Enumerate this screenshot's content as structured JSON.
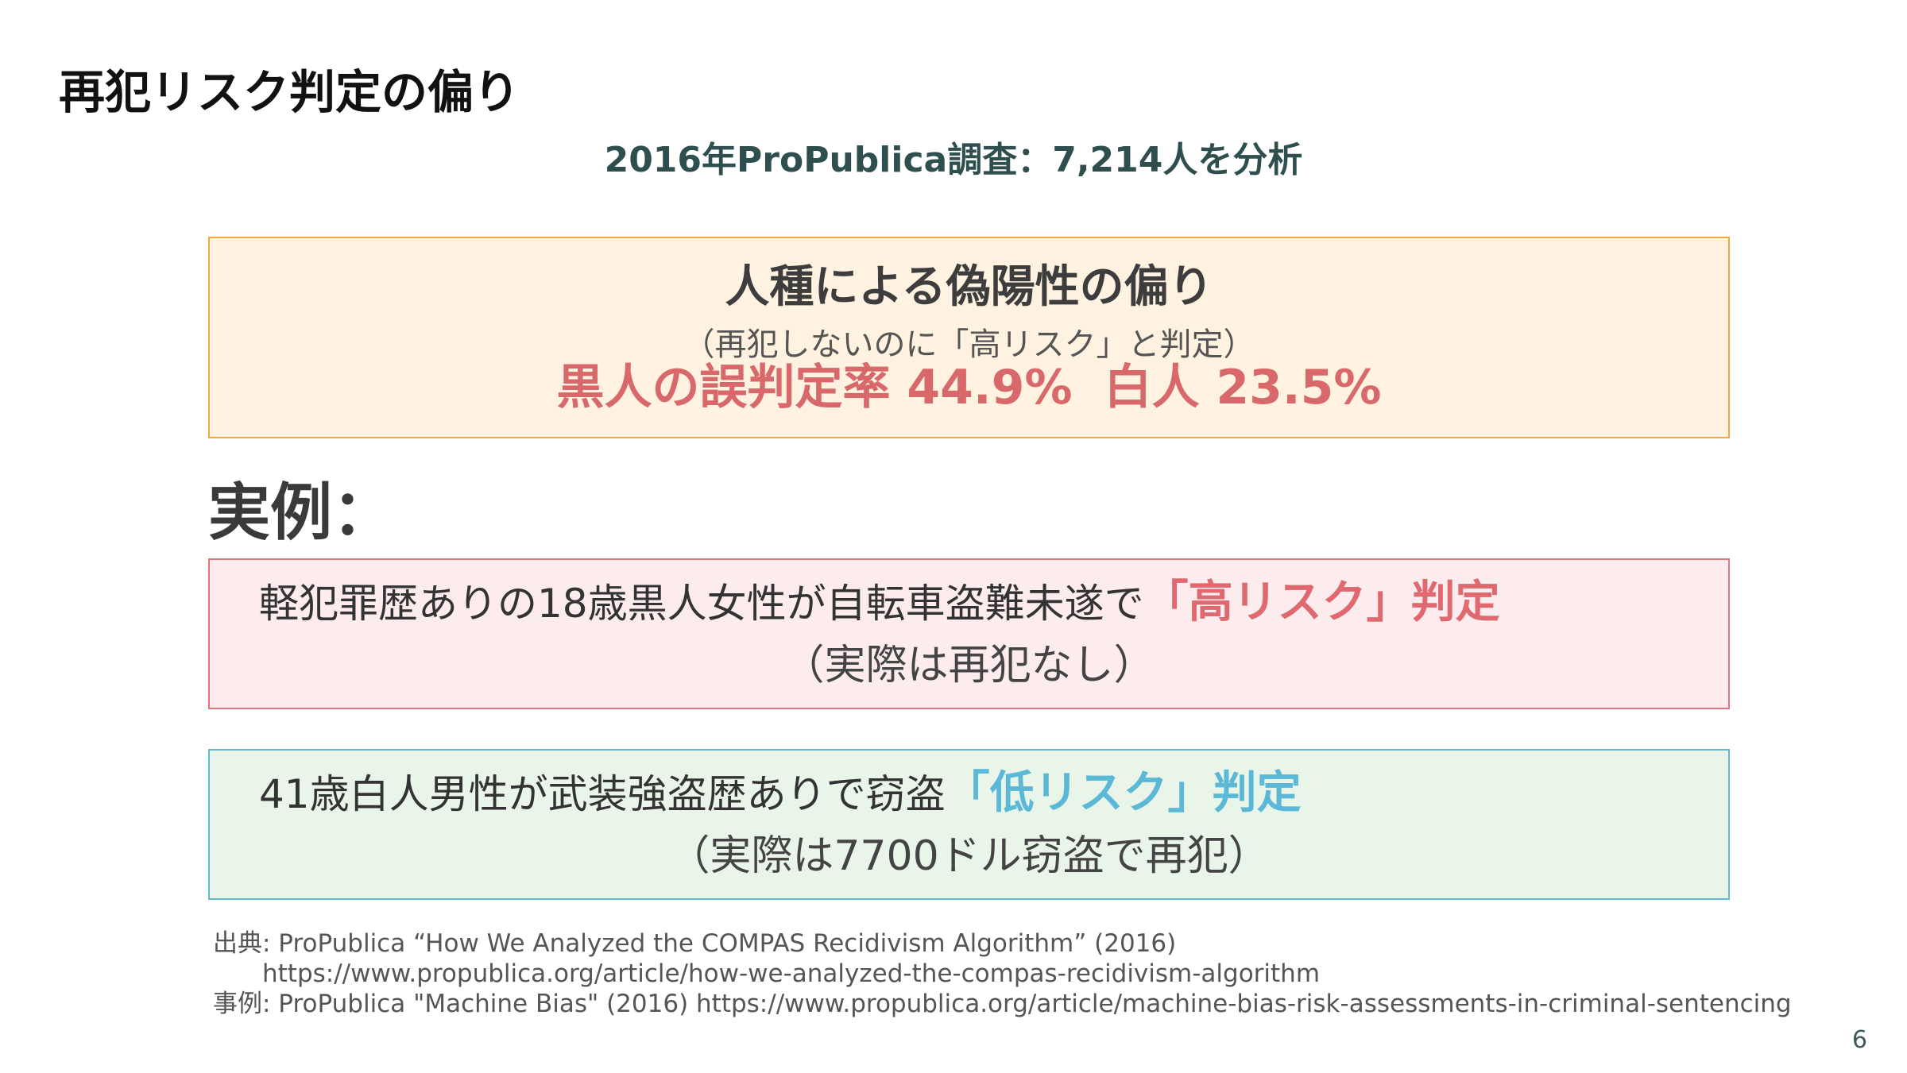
{
  "title": "再犯リスク判定の偏り",
  "subtitle": "2016年ProPublica調査：7,214人を分析",
  "bias_box": {
    "heading": "人種による偽陽性の偏り",
    "subheading": "（再犯しないのに「高リスク」と判定）",
    "stat_black": "黒人の誤判定率 44.9%",
    "stat_white": "白人 23.5%"
  },
  "examples_label": "実例：",
  "examples": [
    {
      "text": "軽犯罪歴ありの18歳黒人女性が自転車盗難未遂で",
      "verdict": "「高リスク」判定",
      "note": "（実際は再犯なし）",
      "color": "#e0696f"
    },
    {
      "text": "41歳白人男性が武装強盗歴ありで窃盗",
      "verdict": "「低リスク」判定",
      "note": "（実際は7700ドル窃盗で再犯）",
      "color": "#5bb8d6"
    }
  ],
  "sources": {
    "line1": "出典: ProPublica “How We Analyzed the COMPAS Recidivism Algorithm” (2016)",
    "line2": "https://www.propublica.org/article/how-we-analyzed-the-compas-recidivism-algorithm",
    "line3": "事例: ProPublica \"Machine Bias\" (2016) https://www.propublica.org/article/machine-bias-risk-assessments-in-criminal-sentencing"
  },
  "page_number": "6"
}
